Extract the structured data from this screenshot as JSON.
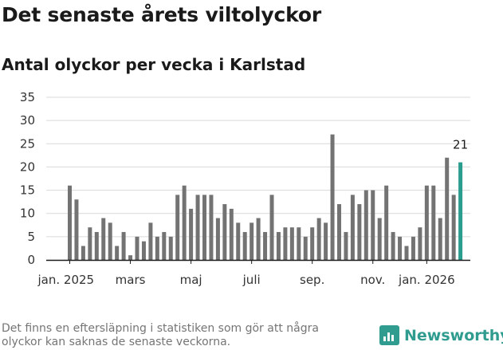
{
  "header": {
    "title": "Det senaste årets viltolyckor",
    "subtitle": "Antal olyckor per vecka i Karlstad"
  },
  "footer": {
    "note": "Det finns en eftersläpning i statistiken som gör att några olyckor kan saknas de senaste veckorna.",
    "brand": "Newsworthy"
  },
  "colors": {
    "bar": "#737373",
    "highlight": "#2a9d8f",
    "brand": "#2f9c8f"
  },
  "chart_data": {
    "type": "bar",
    "title": "Det senaste årets viltolyckor",
    "subtitle": "Antal olyckor per vecka i Karlstad",
    "ylim": [
      0,
      35
    ],
    "yticks": [
      0,
      5,
      10,
      15,
      20,
      25,
      30,
      35
    ],
    "grid": "horizontal",
    "xtick_labels": [
      {
        "label": "jan. 2025",
        "index": 0
      },
      {
        "label": "mars",
        "index": 9
      },
      {
        "label": "maj",
        "index": 18
      },
      {
        "label": "juli",
        "index": 27
      },
      {
        "label": "sep.",
        "index": 36
      },
      {
        "label": "nov.",
        "index": 45
      },
      {
        "label": "jan. 2026",
        "index": 53
      }
    ],
    "values": [
      16,
      13,
      3,
      7,
      6,
      9,
      8,
      3,
      6,
      1,
      5,
      4,
      8,
      5,
      6,
      5,
      14,
      16,
      11,
      14,
      14,
      14,
      9,
      12,
      11,
      8,
      6,
      8,
      9,
      6,
      14,
      6,
      7,
      7,
      7,
      5,
      7,
      9,
      8,
      27,
      12,
      6,
      14,
      12,
      15,
      15,
      9,
      16,
      6,
      5,
      3,
      5,
      7,
      16,
      16,
      9,
      22,
      14,
      21
    ],
    "highlight_index": 58,
    "highlight_label": "21"
  }
}
